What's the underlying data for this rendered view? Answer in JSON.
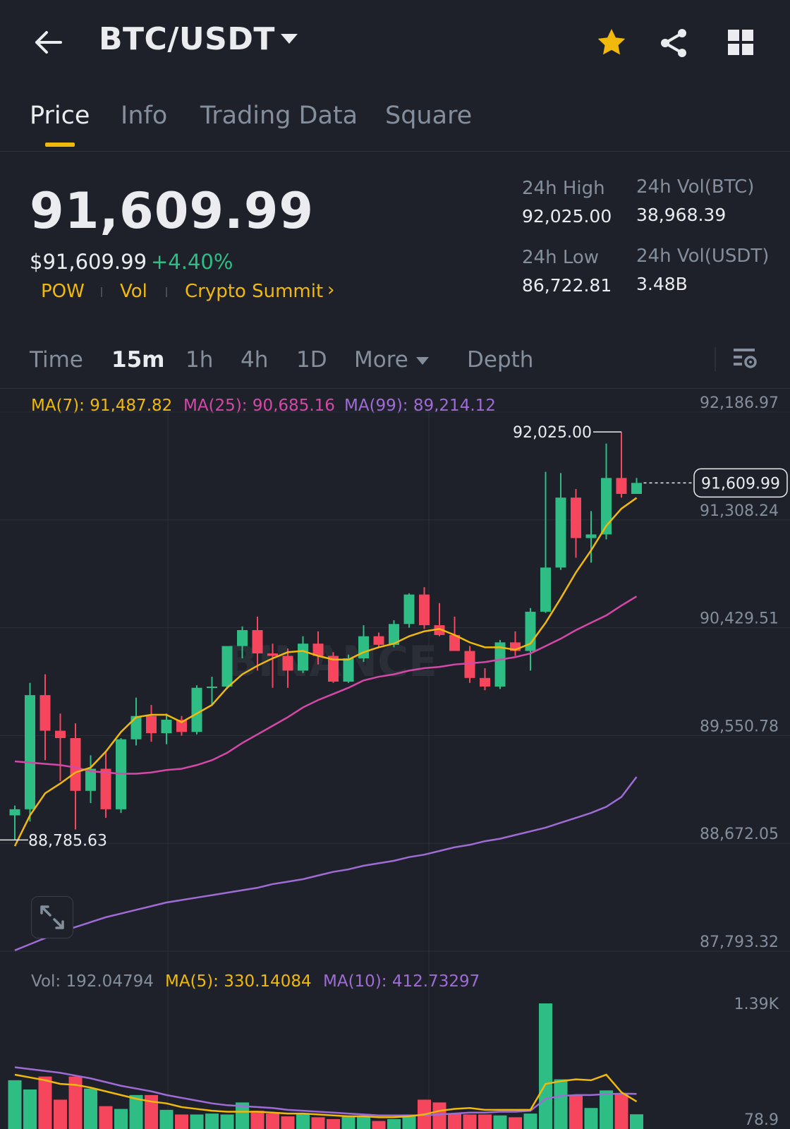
{
  "header": {
    "pair": "BTC/USDT",
    "icons": [
      "back-arrow-icon",
      "caret-down-icon",
      "star-icon",
      "share-icon",
      "grid-icon"
    ]
  },
  "tabs": [
    "Price",
    "Info",
    "Trading Data",
    "Square"
  ],
  "active_tab": "Price",
  "ticker": {
    "price": "91,609.99",
    "fiat_price": "$91,609.99",
    "change": "+4.40%",
    "tags": [
      "POW",
      "Vol",
      "Crypto Summit"
    ],
    "stats": {
      "high_label": "24h High",
      "high": "92,025.00",
      "low_label": "24h Low",
      "low": "86,722.81",
      "vol_btc_label": "24h Vol(BTC)",
      "vol_btc": "38,968.39",
      "vol_usdt_label": "24h Vol(USDT)",
      "vol_usdt": "3.48B"
    }
  },
  "timeframes": {
    "time_label": "Time",
    "options": [
      "15m",
      "1h",
      "4h",
      "1D"
    ],
    "active": "15m",
    "more_label": "More",
    "depth_label": "Depth"
  },
  "indicators": {
    "ma7": "MA(7): 91,487.82",
    "ma25": "MA(25): 90,685.16",
    "ma99": "MA(99): 89,214.12",
    "vol": "Vol: 192.04794",
    "vol_ma5": "MA(5): 330.14084",
    "vol_ma10": "MA(10): 412.73297"
  },
  "colors": {
    "up": "#2ebd85",
    "down": "#f6465d",
    "accent": "#f0b90b",
    "ma7": "#f0b90b",
    "ma25": "#d449a8",
    "ma99": "#9f6cd6",
    "bg": "#1e2129",
    "grid": "#2b2f36",
    "text_muted": "#848e9c"
  },
  "chart_data": {
    "type": "candlestick",
    "y_ticks": [
      "92,186.97",
      "91,308.24",
      "90,429.51",
      "89,550.78",
      "88,672.05",
      "87,793.32"
    ],
    "ylim": [
      87793.32,
      92186.97
    ],
    "current_price_label": "91,609.99",
    "high_marker": "92,025.00",
    "low_marker": "88,785.63",
    "candles": [
      {
        "o": 88900,
        "h": 88980,
        "l": 88700,
        "c": 88950
      },
      {
        "o": 88950,
        "h": 89980,
        "l": 88850,
        "c": 89880
      },
      {
        "o": 89880,
        "h": 90050,
        "l": 89350,
        "c": 89590
      },
      {
        "o": 89590,
        "h": 89730,
        "l": 89180,
        "c": 89530
      },
      {
        "o": 89530,
        "h": 89650,
        "l": 88785.63,
        "c": 89100
      },
      {
        "o": 89100,
        "h": 89390,
        "l": 89000,
        "c": 89280
      },
      {
        "o": 89280,
        "h": 89420,
        "l": 88880,
        "c": 88950
      },
      {
        "o": 88950,
        "h": 89530,
        "l": 88920,
        "c": 89520
      },
      {
        "o": 89520,
        "h": 89860,
        "l": 89470,
        "c": 89710
      },
      {
        "o": 89710,
        "h": 89800,
        "l": 89500,
        "c": 89570
      },
      {
        "o": 89570,
        "h": 89730,
        "l": 89480,
        "c": 89680
      },
      {
        "o": 89680,
        "h": 89710,
        "l": 89550,
        "c": 89580
      },
      {
        "o": 89580,
        "h": 89960,
        "l": 89560,
        "c": 89940
      },
      {
        "o": 89940,
        "h": 90030,
        "l": 89800,
        "c": 89950
      },
      {
        "o": 89950,
        "h": 90280,
        "l": 89930,
        "c": 90280
      },
      {
        "o": 90280,
        "h": 90440,
        "l": 90180,
        "c": 90410
      },
      {
        "o": 90410,
        "h": 90520,
        "l": 90080,
        "c": 90220
      },
      {
        "o": 90220,
        "h": 90300,
        "l": 89940,
        "c": 90200
      },
      {
        "o": 90200,
        "h": 90260,
        "l": 89940,
        "c": 90080
      },
      {
        "o": 90080,
        "h": 90360,
        "l": 90060,
        "c": 90300
      },
      {
        "o": 90300,
        "h": 90400,
        "l": 90130,
        "c": 90200
      },
      {
        "o": 90200,
        "h": 90230,
        "l": 89980,
        "c": 89990
      },
      {
        "o": 89990,
        "h": 90210,
        "l": 89980,
        "c": 90180
      },
      {
        "o": 90180,
        "h": 90450,
        "l": 90150,
        "c": 90360
      },
      {
        "o": 90360,
        "h": 90390,
        "l": 90270,
        "c": 90290
      },
      {
        "o": 90290,
        "h": 90490,
        "l": 90270,
        "c": 90460
      },
      {
        "o": 90460,
        "h": 90710,
        "l": 90430,
        "c": 90700
      },
      {
        "o": 90700,
        "h": 90760,
        "l": 90420,
        "c": 90450
      },
      {
        "o": 90450,
        "h": 90630,
        "l": 90360,
        "c": 90370
      },
      {
        "o": 90370,
        "h": 90520,
        "l": 90250,
        "c": 90240
      },
      {
        "o": 90240,
        "h": 90280,
        "l": 89980,
        "c": 90020
      },
      {
        "o": 90020,
        "h": 90100,
        "l": 89920,
        "c": 89950
      },
      {
        "o": 89950,
        "h": 90330,
        "l": 89930,
        "c": 90310
      },
      {
        "o": 90310,
        "h": 90400,
        "l": 90200,
        "c": 90240
      },
      {
        "o": 90240,
        "h": 90590,
        "l": 90080,
        "c": 90560
      },
      {
        "o": 90560,
        "h": 91700,
        "l": 90550,
        "c": 90920
      },
      {
        "o": 90920,
        "h": 91690,
        "l": 90900,
        "c": 91490
      },
      {
        "o": 91490,
        "h": 91560,
        "l": 91000,
        "c": 91160
      },
      {
        "o": 91160,
        "h": 91380,
        "l": 90960,
        "c": 91190
      },
      {
        "o": 91190,
        "h": 91930,
        "l": 91150,
        "c": 91650
      },
      {
        "o": 91650,
        "h": 92025.0,
        "l": 91490,
        "c": 91520
      },
      {
        "o": 91520,
        "h": 91650,
        "l": 91560,
        "c": 91609.99
      }
    ],
    "ma7": [
      88650,
      88900,
      89080,
      89160,
      89250,
      89290,
      89420,
      89580,
      89700,
      89720,
      89720,
      89660,
      89730,
      89800,
      89940,
      90050,
      90120,
      90180,
      90230,
      90240,
      90200,
      90170,
      90170,
      90230,
      90270,
      90300,
      90360,
      90400,
      90420,
      90370,
      90310,
      90270,
      90270,
      90250,
      90300,
      90470,
      90670,
      90880,
      91060,
      91260,
      91400,
      91487.82
    ],
    "ma25": [
      89340,
      89330,
      89320,
      89310,
      89290,
      89260,
      89250,
      89240,
      89240,
      89250,
      89270,
      89280,
      89310,
      89350,
      89410,
      89490,
      89560,
      89630,
      89700,
      89780,
      89840,
      89890,
      89940,
      90000,
      90030,
      90050,
      90080,
      90100,
      90110,
      90130,
      90140,
      90150,
      90170,
      90190,
      90220,
      90280,
      90340,
      90410,
      90470,
      90530,
      90610,
      90685.16
    ],
    "ma99": [
      87800,
      87850,
      87900,
      87950,
      87990,
      88030,
      88070,
      88100,
      88130,
      88160,
      88190,
      88210,
      88230,
      88250,
      88270,
      88290,
      88310,
      88340,
      88360,
      88380,
      88410,
      88440,
      88460,
      88490,
      88510,
      88530,
      88560,
      88580,
      88610,
      88640,
      88660,
      88690,
      88710,
      88740,
      88770,
      88800,
      88840,
      88880,
      88920,
      88970,
      89050,
      89214.12
    ],
    "volume": {
      "y_ticks": [
        "1.39K",
        "78.9"
      ],
      "ylim": [
        78.9,
        1390
      ],
      "values": [
        560,
        460,
        600,
        350,
        600,
        470,
        280,
        250,
        400,
        400,
        240,
        190,
        190,
        200,
        190,
        320,
        230,
        200,
        170,
        200,
        160,
        140,
        170,
        170,
        120,
        140,
        190,
        350,
        320,
        200,
        190,
        190,
        180,
        160,
        200,
        1390,
        570,
        400,
        260,
        450,
        420,
        192.04794
      ],
      "ma5": [
        620,
        590,
        560,
        520,
        510,
        480,
        440,
        400,
        360,
        330,
        310,
        270,
        250,
        230,
        220,
        220,
        220,
        210,
        200,
        200,
        190,
        180,
        170,
        170,
        160,
        160,
        170,
        190,
        230,
        250,
        260,
        240,
        240,
        240,
        240,
        520,
        550,
        570,
        560,
        620,
        430,
        330.14084
      ],
      "ma10": [
        700,
        680,
        660,
        640,
        610,
        580,
        540,
        500,
        470,
        440,
        400,
        370,
        340,
        310,
        290,
        280,
        270,
        260,
        240,
        230,
        220,
        210,
        200,
        190,
        180,
        180,
        180,
        180,
        190,
        200,
        210,
        210,
        220,
        220,
        230,
        360,
        390,
        400,
        400,
        410,
        415,
        412.73297
      ]
    }
  }
}
